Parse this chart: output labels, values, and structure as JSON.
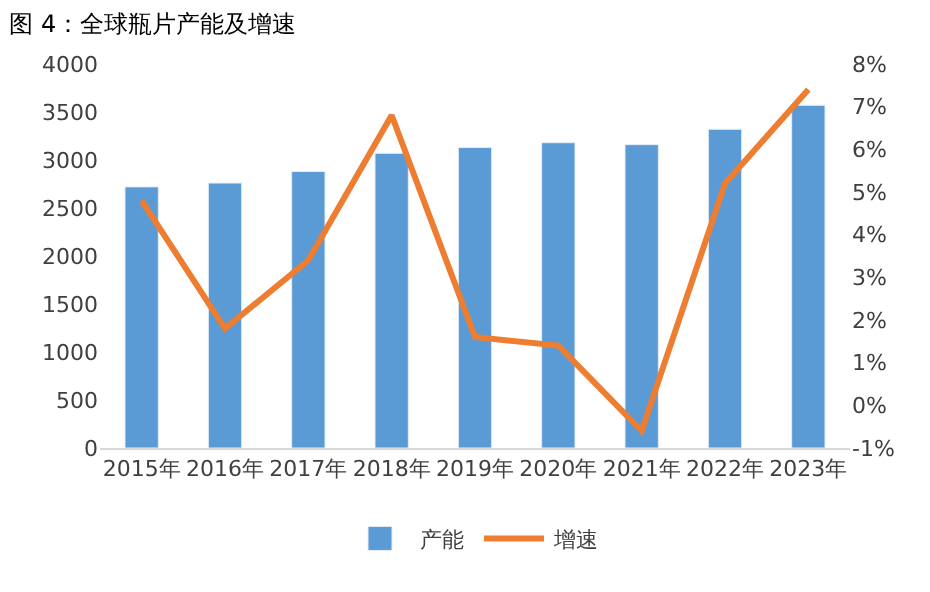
{
  "chart_data": {
    "type": "bar",
    "title": "图 4：全球瓶片产能及增速",
    "categories": [
      "2015年",
      "2016年",
      "2017年",
      "2018年",
      "2019年",
      "2020年",
      "2021年",
      "2022年",
      "2023年"
    ],
    "series": [
      {
        "name": "产能",
        "color": "#5b9bd5",
        "values": [
          2720,
          2760,
          2880,
          3070,
          3130,
          3180,
          3160,
          3320,
          3570
        ]
      },
      {
        "name": "增速",
        "type": "line",
        "axis": "y2",
        "color": "#ed7d31",
        "values": [
          4.8,
          1.8,
          3.4,
          6.8,
          1.6,
          1.4,
          -0.6,
          5.2,
          7.4
        ]
      }
    ],
    "ylim": [
      0,
      4000
    ],
    "yticks": [
      0,
      500,
      1000,
      1500,
      2000,
      2500,
      3000,
      3500,
      4000
    ],
    "y2lim": [
      -1,
      8
    ],
    "y2ticks": [
      {
        "value": -1,
        "label": "-1%"
      },
      {
        "value": 0,
        "label": "0%"
      },
      {
        "value": 1,
        "label": "1%"
      },
      {
        "value": 2,
        "label": "2%"
      },
      {
        "value": 3,
        "label": "3%"
      },
      {
        "value": 4,
        "label": "4%"
      },
      {
        "value": 5,
        "label": "5%"
      },
      {
        "value": 6,
        "label": "6%"
      },
      {
        "value": 7,
        "label": "7%"
      },
      {
        "value": 8,
        "label": "8%"
      }
    ],
    "legend": "bottom",
    "marker": "none",
    "line_style": "solid"
  }
}
